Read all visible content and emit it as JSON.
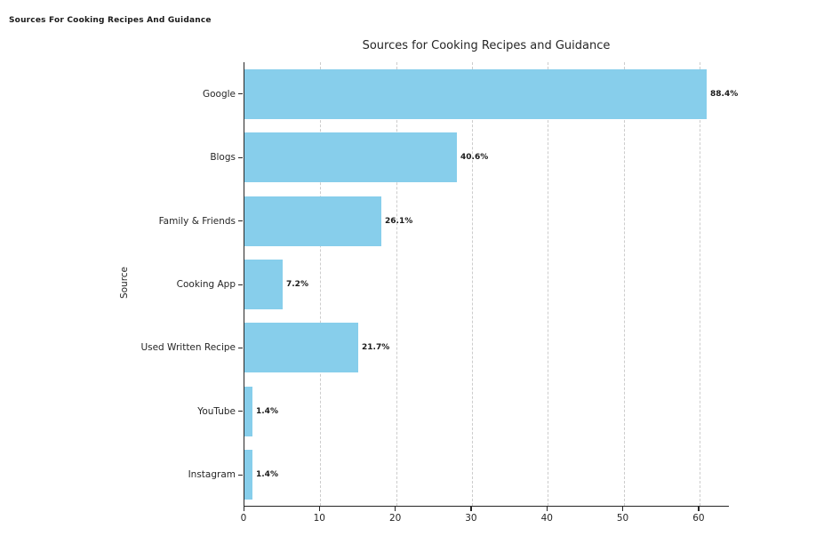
{
  "page": {
    "header": "Sources For Cooking Recipes And Guidance"
  },
  "chart_data": {
    "type": "bar",
    "orientation": "horizontal",
    "title": "Sources for Cooking Recipes and Guidance",
    "xlabel": "",
    "ylabel": "Source",
    "categories": [
      "Google",
      "Blogs",
      "Family & Friends",
      "Cooking App",
      "Used Written Recipe",
      "YouTube",
      "Instagram"
    ],
    "values": [
      61,
      28,
      18,
      5,
      15,
      1,
      1
    ],
    "value_labels": [
      "88.4%",
      "40.6%",
      "26.1%",
      "7.2%",
      "21.7%",
      "1.4%",
      "1.4%"
    ],
    "xlim": [
      0,
      64
    ],
    "xticks": [
      0,
      10,
      20,
      30,
      40,
      50,
      60
    ],
    "grid": true,
    "legend": false,
    "bar_color": "#87CEEB",
    "grid_color": "#cccccc"
  }
}
